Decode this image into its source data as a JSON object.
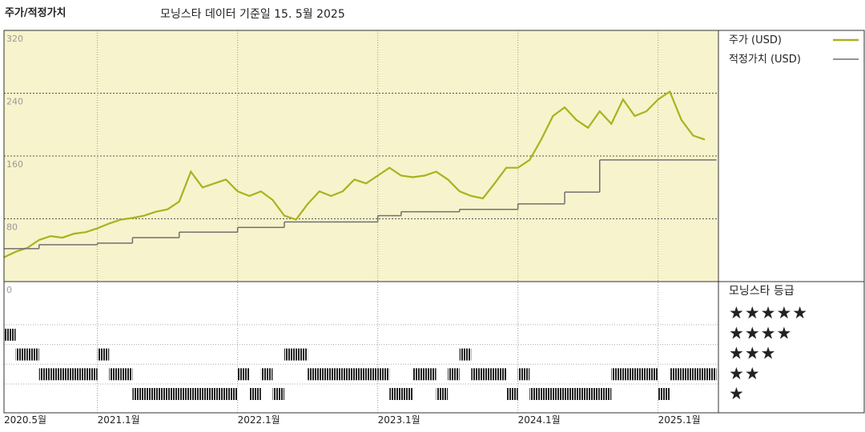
{
  "chart_data": {
    "type": "line",
    "title": "주가/적정가치",
    "subtitle": "모닝스타 데이터 기준일 15. 5월 2025",
    "x": [
      "2020-05",
      "2020-06",
      "2020-07",
      "2020-08",
      "2020-09",
      "2020-10",
      "2020-11",
      "2020-12",
      "2021-01",
      "2021-02",
      "2021-03",
      "2021-04",
      "2021-05",
      "2021-06",
      "2021-07",
      "2021-08",
      "2021-09",
      "2021-10",
      "2021-11",
      "2021-12",
      "2022-01",
      "2022-02",
      "2022-03",
      "2022-04",
      "2022-05",
      "2022-06",
      "2022-07",
      "2022-08",
      "2022-09",
      "2022-10",
      "2022-11",
      "2022-12",
      "2023-01",
      "2023-02",
      "2023-03",
      "2023-04",
      "2023-05",
      "2023-06",
      "2023-07",
      "2023-08",
      "2023-09",
      "2023-10",
      "2023-11",
      "2023-12",
      "2024-01",
      "2024-02",
      "2024-03",
      "2024-04",
      "2024-05",
      "2024-06",
      "2024-07",
      "2024-08",
      "2024-09",
      "2024-10",
      "2024-11",
      "2024-12",
      "2025-01",
      "2025-02",
      "2025-03",
      "2025-04",
      "2025-05"
    ],
    "series": [
      {
        "name": "주가 (USD)",
        "color": "#a9b21e",
        "style": "line",
        "values": [
          31,
          38,
          43,
          53,
          58,
          56,
          61,
          63,
          68,
          74,
          79,
          81,
          84,
          89,
          92,
          102,
          140,
          120,
          125,
          130,
          115,
          109,
          115,
          104,
          84,
          79,
          99,
          115,
          109,
          115,
          130,
          125,
          135,
          145,
          135,
          133,
          135,
          140,
          130,
          115,
          109,
          106,
          125,
          145,
          145,
          155,
          181,
          211,
          222,
          206,
          196,
          217,
          201,
          232,
          211,
          217,
          232,
          242,
          206,
          186,
          181
        ]
      },
      {
        "name": "적정가치 (USD)",
        "color": "#707070",
        "style": "step",
        "values": [
          42,
          42,
          42,
          47,
          47,
          47,
          47,
          47,
          49,
          49,
          49,
          56,
          56,
          56,
          56,
          63,
          63,
          63,
          63,
          63,
          69,
          69,
          69,
          69,
          76,
          76,
          76,
          76,
          76,
          76,
          76,
          76,
          84,
          84,
          89,
          89,
          89,
          89,
          89,
          92,
          92,
          92,
          92,
          92,
          99,
          99,
          99,
          99,
          114,
          114,
          114,
          155,
          155,
          155,
          155,
          155,
          155,
          155,
          155,
          155,
          155
        ]
      }
    ],
    "ratings": {
      "name": "모닝스타 등급",
      "levels": [
        "★★★★★",
        "★★★★",
        "★★★",
        "★★",
        "★"
      ],
      "values": [
        4,
        3,
        3,
        2,
        2,
        2,
        2,
        2,
        3,
        2,
        2,
        1,
        1,
        1,
        1,
        1,
        1,
        1,
        1,
        1,
        2,
        1,
        2,
        1,
        3,
        3,
        2,
        2,
        2,
        2,
        2,
        2,
        2,
        1,
        1,
        2,
        2,
        1,
        2,
        3,
        2,
        2,
        2,
        1,
        2,
        1,
        1,
        1,
        1,
        1,
        1,
        1,
        2,
        2,
        2,
        2,
        1,
        2,
        2,
        2,
        2
      ]
    },
    "ylim": [
      0,
      320
    ],
    "yticks": [
      0,
      80,
      160,
      240,
      320
    ],
    "xticks": [
      {
        "value": "2020-05",
        "label": "2020.5월"
      },
      {
        "value": "2021-01",
        "label": "2021.1월"
      },
      {
        "value": "2022-01",
        "label": "2022.1월"
      },
      {
        "value": "2023-01",
        "label": "2023.1월"
      },
      {
        "value": "2024-01",
        "label": "2024.1월"
      },
      {
        "value": "2025-01",
        "label": "2025.1월"
      }
    ],
    "grid": true,
    "background": "#f7f3cc"
  }
}
